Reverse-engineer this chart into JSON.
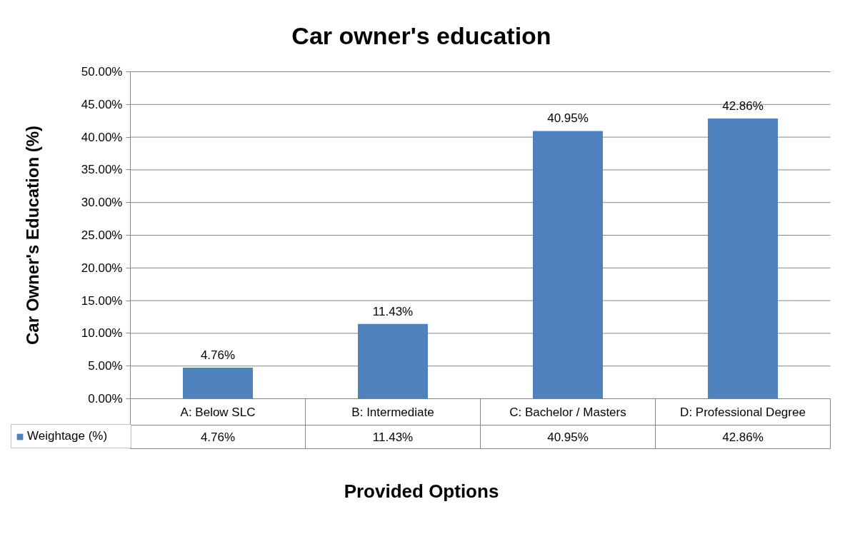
{
  "chart_data": {
    "type": "bar",
    "title": "Car owner's education",
    "xlabel": "Provided Options",
    "ylabel": "Car Owner's Education (%)",
    "categories": [
      "A: Below SLC",
      "B: Intermediate",
      "C: Bachelor / Masters",
      "D: Professional Degree"
    ],
    "series": [
      {
        "name": "Weightage (%)",
        "color": "#4f81bd",
        "values": [
          4.76,
          11.43,
          40.95,
          42.86
        ],
        "value_labels": [
          "4.76%",
          "11.43%",
          "40.95%",
          "42.86%"
        ]
      }
    ],
    "ylim": [
      0,
      50
    ],
    "yticks": [
      {
        "value": 0,
        "label": "0.00%"
      },
      {
        "value": 5,
        "label": "5.00%"
      },
      {
        "value": 10,
        "label": "10.00%"
      },
      {
        "value": 15,
        "label": "15.00%"
      },
      {
        "value": 20,
        "label": "20.00%"
      },
      {
        "value": 25,
        "label": "25.00%"
      },
      {
        "value": 30,
        "label": "30.00%"
      },
      {
        "value": 35,
        "label": "35.00%"
      },
      {
        "value": 40,
        "label": "40.00%"
      },
      {
        "value": 45,
        "label": "45.00%"
      },
      {
        "value": 50,
        "label": "50.00%"
      }
    ],
    "grid": "y",
    "legend": "bottom left"
  }
}
